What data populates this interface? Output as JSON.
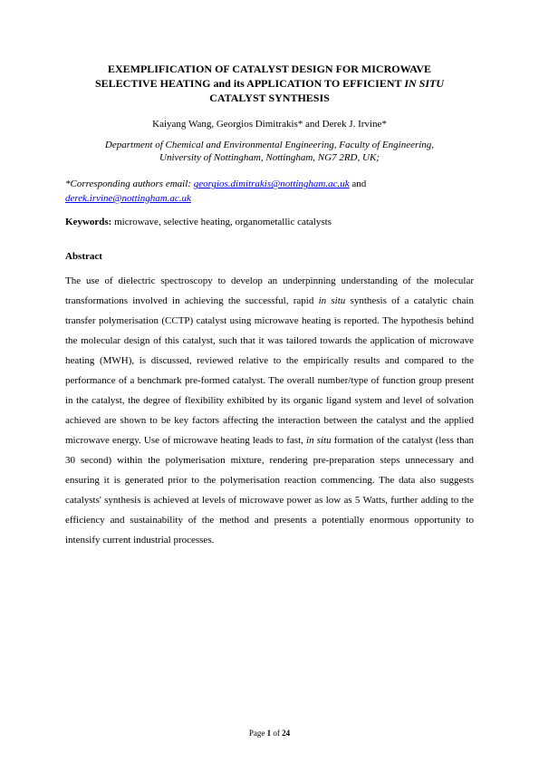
{
  "title": {
    "line1": "EXEMPLIFICATION OF CATALYST DESIGN FOR MICROWAVE",
    "line2a": "SELECTIVE HEATING and its APPLICATION TO EFFICIENT ",
    "line2b_italic": "IN SITU",
    "line3": "CATALYST SYNTHESIS"
  },
  "authors": "Kaiyang Wang, Georgios Dimitrakis* and Derek J. Irvine*",
  "affiliation": {
    "line1": "Department of Chemical and Environmental Engineering, Faculty of Engineering,",
    "line2": "University of Nottingham, Nottingham, NG7 2RD, UK;"
  },
  "corresponding": {
    "label": "*Corresponding authors email: ",
    "email1": "georgios.dimitrakis@nottingham.ac.uk",
    "and": " and ",
    "email2": "derek.irvine@nottingham.ac.uk"
  },
  "keywords": {
    "label": "Keywords: ",
    "text": "microwave, selective heating, organometallic catalysts"
  },
  "abstract": {
    "heading": "Abstract",
    "p1a": "The use of dielectric spectroscopy to develop an underpinning understanding of the molecular transformations involved in achieving the successful, rapid ",
    "p1b_italic": "in situ",
    "p1c": " synthesis of a catalytic chain transfer polymerisation (CCTP) catalyst using microwave heating is reported. The hypothesis behind the molecular design of this catalyst, such that it was tailored towards the application of microwave heating (MWH), is discussed, reviewed relative to the empirically results and compared to the performance of a benchmark pre-formed catalyst. The overall number/type of function group present in the catalyst, the degree of flexibility exhibited by its organic ligand system and level of solvation achieved are shown to be key factors affecting the interaction between the catalyst and the applied microwave energy. Use of microwave heating leads to fast, ",
    "p1d_italic": "in situ",
    "p1e": " formation of the catalyst (less than 30 second) within the polymerisation mixture, rendering pre-preparation steps unnecessary and ensuring it is generated prior to the polymerisation reaction commencing. The data also suggests catalysts' synthesis is achieved at levels of microwave power as low as 5 Watts, further adding to the efficiency and sustainability of the method and presents a potentially enormous opportunity to intensify current industrial processes."
  },
  "footer": {
    "prefix": "Page ",
    "current": "1",
    "of": " of ",
    "total": "24"
  },
  "colors": {
    "link": "#0000ee",
    "text": "#000000",
    "background": "#ffffff"
  }
}
